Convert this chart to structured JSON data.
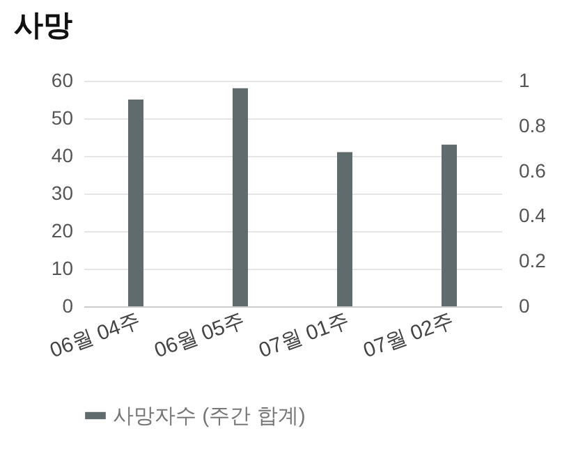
{
  "chart_data": {
    "type": "bar",
    "title": "사망",
    "categories": [
      "06월 04주",
      "06월 05주",
      "07월 01주",
      "07월 02주"
    ],
    "series": [
      {
        "name": "사망자수 (주간 합계)",
        "color": "#606b6d",
        "values": [
          55,
          58,
          41,
          43
        ]
      }
    ],
    "ylim": [
      0,
      60
    ],
    "yticks": [
      0,
      10,
      20,
      30,
      40,
      50,
      60
    ],
    "y2lim": [
      0,
      1
    ],
    "y2ticks": [
      0,
      0.2,
      0.4,
      0.6,
      0.8,
      1
    ],
    "grid": "y",
    "legend": "bottom"
  }
}
